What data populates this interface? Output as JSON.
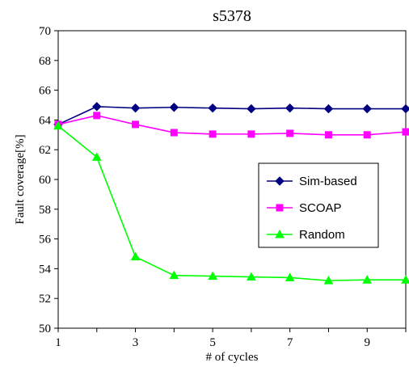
{
  "chart_data": {
    "type": "line",
    "title": "s5378",
    "xlabel": "# of cycles",
    "ylabel": "Fault coverage[%]",
    "xlim": [
      1,
      10
    ],
    "ylim": [
      50,
      70
    ],
    "xticks": [
      1,
      3,
      5,
      7,
      9
    ],
    "yticks": [
      50,
      52,
      54,
      56,
      58,
      60,
      62,
      64,
      66,
      68,
      70
    ],
    "grid": false,
    "legend_position": "right",
    "x": [
      1,
      2,
      3,
      4,
      5,
      6,
      7,
      8,
      9,
      10
    ],
    "series": [
      {
        "name": "Sim-based",
        "color": "#000080",
        "marker": "diamond",
        "values": [
          63.7,
          64.9,
          64.8,
          64.85,
          64.8,
          64.75,
          64.8,
          64.75,
          64.75,
          64.75
        ]
      },
      {
        "name": "SCOAP",
        "color": "#ff00ff",
        "marker": "square",
        "values": [
          63.7,
          64.3,
          63.7,
          63.15,
          63.05,
          63.05,
          63.1,
          63.0,
          63.0,
          63.2
        ]
      },
      {
        "name": "Random",
        "color": "#00ff00",
        "marker": "triangle",
        "values": [
          63.6,
          61.5,
          54.8,
          53.55,
          53.5,
          53.45,
          53.4,
          53.2,
          53.25,
          53.25
        ]
      }
    ]
  }
}
